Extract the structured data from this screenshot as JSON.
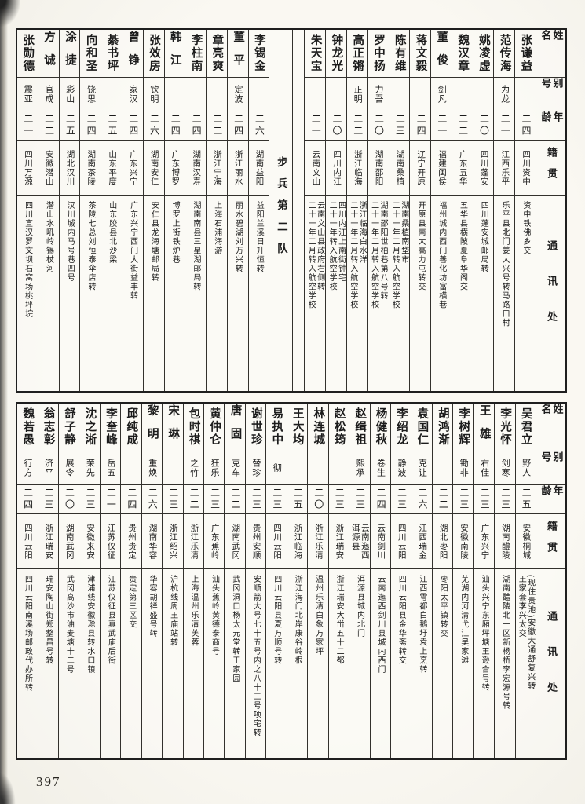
{
  "page": {
    "number": "397"
  },
  "header_labels": {
    "name": "姓名",
    "alias": "别号",
    "age": "年龄",
    "native": "籍贯",
    "address": "通讯处"
  },
  "tables": [
    {
      "id": "top",
      "columns": [
        {
          "type": "header"
        },
        {
          "type": "person",
          "name": "张谦益",
          "alias": "",
          "age": "二四",
          "native": "四川资中",
          "address": "资中铁佛乡交"
        },
        {
          "type": "person",
          "name": "范传海",
          "alias": "为龙",
          "age": "二一",
          "native": "江西乐平",
          "address": "乐平县北门姜大兴号转马路口村"
        },
        {
          "type": "person",
          "name": "姚凌虚",
          "alias": "",
          "age": "二〇",
          "native": "四川蓬安",
          "address": "四川蓬安城邮局转"
        },
        {
          "type": "person",
          "name": "魏汉章",
          "alias": "",
          "age": "二二",
          "native": "广东五华",
          "address": "五华县横陂夏阜华阁交"
        },
        {
          "type": "person",
          "name": "董俊",
          "alias": "剑凡",
          "age": "二一",
          "native": "福建闽侯",
          "address": "福州城内西门善化坊富横巷"
        },
        {
          "type": "person",
          "name": "蒋文毅",
          "alias": "",
          "age": "二四",
          "native": "辽宁开原",
          "address": "开原县南大高力屯转交"
        },
        {
          "type": "person",
          "name": "陈有维",
          "alias": "",
          "age": "二三",
          "native": "湖南桑植",
          "address": "湖南桑植南垈市\n二十一年二月转入航空学校"
        },
        {
          "type": "person",
          "name": "罗中扬",
          "alias": "力吾",
          "age": "二〇",
          "native": "湖南邵阳",
          "address": "湖南邵阳世柏巷第八号转\n二十一年二月转入航空学校"
        },
        {
          "type": "person",
          "name": "高正锵",
          "alias": "正明",
          "age": "二二",
          "native": "浙江临海",
          "address": "浙江临海白水洋\n二十一年二月转入航空学校"
        },
        {
          "type": "person",
          "name": "钟龙光",
          "alias": "",
          "age": "二〇",
          "native": "四川内江",
          "address": "四川内江上南街钟宅\n二十一年转入航空学校"
        },
        {
          "type": "person",
          "name": "朱天宝",
          "alias": "",
          "age": "二一",
          "native": "云南文山",
          "address": "云南文山县政府右侧转\n二十一年二月转入航空学校"
        },
        {
          "type": "spacer"
        },
        {
          "type": "divider",
          "label": "步兵第二队"
        },
        {
          "type": "person",
          "name": "李锡金",
          "alias": "",
          "age": "二六",
          "native": "湖南益阳",
          "address": "益阳兰溪日升恒转"
        },
        {
          "type": "person",
          "name": "董平",
          "alias": "定波",
          "age": "二四",
          "native": "浙江丽水",
          "address": "丽水碧湖刘万兴转"
        },
        {
          "type": "person",
          "name": "章亮爽",
          "alias": "",
          "age": "二二",
          "native": "浙江宁海",
          "address": "上海石浦海游"
        },
        {
          "type": "person",
          "name": "李柱南",
          "alias": "",
          "age": "二四",
          "native": "湖南汉寿",
          "address": "湖南南县三星湖邮局转"
        },
        {
          "type": "person",
          "name": "韩江",
          "alias": "",
          "age": "二四",
          "native": "广东博罗",
          "address": "博罗上街铁炉巷"
        },
        {
          "type": "person",
          "name": "张效房",
          "alias": "钦明",
          "age": "二六",
          "native": "湖南安仁",
          "address": "安仁县龙海塘邮局转"
        },
        {
          "type": "person",
          "name": "曾铮",
          "alias": "家汉",
          "age": "二四",
          "native": "广东兴宁",
          "address": "广东兴宁西门大街益丰转"
        },
        {
          "type": "person",
          "name": "綦书坪",
          "alias": "",
          "age": "二五",
          "native": "山东平度",
          "address": "山东胶县北沙梁"
        },
        {
          "type": "person",
          "name": "向和圣",
          "alias": "饶思",
          "age": "二四",
          "native": "湖南茶陵",
          "address": "茶陵七总刘恒泰伞店转"
        },
        {
          "type": "person",
          "name": "涂捷",
          "alias": "彩山",
          "age": "二五",
          "native": "湖北汉川",
          "address": "汉川城内马号巷四号"
        },
        {
          "type": "person",
          "name": "方诚",
          "alias": "官成",
          "age": "二二",
          "native": "安徽潜山",
          "address": "潜山水吼岭锡杖河"
        },
        {
          "type": "person",
          "name": "张勋德",
          "alias": "震亚",
          "age": "二一",
          "native": "四川万源",
          "address": "四川宣汉罗文坝石窝场桃坪垸"
        }
      ]
    },
    {
      "id": "bottom",
      "columns": [
        {
          "type": "header"
        },
        {
          "type": "person",
          "name": "吴君立",
          "alias": "野人",
          "age": "二五",
          "native": "安徽桐城",
          "address": "(现住贵池)安徽大通舒复兴转\n王家套李兴太交"
        },
        {
          "type": "person",
          "name": "李光怀",
          "alias": "剑寒",
          "age": "二三",
          "native": "湖南醴陵",
          "address": "湖南醴陵北一区新杨桥李宏源号转"
        },
        {
          "type": "person",
          "name": "王雄",
          "alias": "右佳",
          "age": "二三",
          "native": "广东兴宁",
          "address": "汕头兴宁东厢坪塘王逊合号转"
        },
        {
          "type": "person",
          "name": "李树辉",
          "alias": "锄非",
          "age": "二三",
          "native": "安徽南陵",
          "address": "芜湖内河清弋江吴家滩"
        },
        {
          "type": "person",
          "name": "胡鸿渐",
          "alias": "",
          "age": "二二",
          "native": "湖北枣阳",
          "address": "枣阳太平镇转交"
        },
        {
          "type": "person",
          "name": "袁国仁",
          "alias": "克让",
          "age": "二六",
          "native": "江西瑞金",
          "address": "江西雩都白鹅圩袁上烹转"
        },
        {
          "type": "person",
          "name": "李绍龙",
          "alias": "静波",
          "age": "二三",
          "native": "四川云阳",
          "address": "四川云阳县金华斋转交"
        },
        {
          "type": "person",
          "name": "杨健秋",
          "alias": "卷生",
          "age": "二四",
          "native": "云南剑川",
          "address": "云南迤西剑川县城内西门"
        },
        {
          "type": "person",
          "name": "赵缉祖",
          "alias": "熙承",
          "age": "二三",
          "native": "云南迤西\n洱源县",
          "address": "洱源县城内北门"
        },
        {
          "type": "person",
          "name": "赵松筠",
          "alias": "",
          "age": "二三",
          "native": "浙江瑞安",
          "address": "浙江瑞安大峃五十二都"
        },
        {
          "type": "person",
          "name": "林连城",
          "alias": "",
          "age": "二〇",
          "native": "浙江乐清",
          "address": "温州乐清白象万家坪"
        },
        {
          "type": "person",
          "name": "王大均",
          "alias": "",
          "age": "二五",
          "native": "浙江临海",
          "address": "浙江海门北岸康谷岭根"
        },
        {
          "type": "person",
          "name": "易执中",
          "alias": "彻",
          "age": "二三",
          "native": "四川云阳",
          "address": "四川云阳县夏万顺号转"
        },
        {
          "type": "person",
          "name": "谢世珍",
          "alias": "替珍",
          "age": "二三",
          "native": "贵州安顺",
          "address": "安顺箭大号七十五号内之八十三号项宅转"
        },
        {
          "type": "person",
          "name": "唐固",
          "alias": "克车",
          "age": "二二",
          "native": "湖南武冈",
          "address": "武冈洞口杨太元堂转王家园"
        },
        {
          "type": "person",
          "name": "黄仲仑",
          "alias": "狂乐",
          "age": "二三",
          "native": "广东蕉岭",
          "address": "汕头蕉岭黄德泰商号"
        },
        {
          "type": "person",
          "name": "包时祺",
          "alias": "之竹",
          "age": "二二",
          "native": "浙江乐清",
          "address": "上海温州乐清芙蓉"
        },
        {
          "type": "person",
          "name": "宋琳",
          "alias": "",
          "age": "二三",
          "native": "浙江绍兴",
          "address": "沪杭线周王庙站转"
        },
        {
          "type": "person",
          "name": "黎明",
          "alias": "重焕",
          "age": "二六",
          "native": "湖南华容",
          "address": "华容胡祥盛号转"
        },
        {
          "type": "person",
          "name": "邱纯成",
          "alias": "",
          "age": "二四",
          "native": "贵州贵定",
          "address": "贵定第三区交"
        },
        {
          "type": "person",
          "name": "李奎峰",
          "alias": "岳五",
          "age": "二一",
          "native": "江苏仪征",
          "address": "江苏仪征县真武庙后街"
        },
        {
          "type": "person",
          "name": "沈之淅",
          "alias": "荣先",
          "age": "二三",
          "native": "安徽来安",
          "address": "津浦线安徽滁县转水口镇"
        },
        {
          "type": "person",
          "name": "舒子静",
          "alias": "展令",
          "age": "二〇",
          "native": "湖南武冈",
          "address": "武冈高沙市油麦塘十二号"
        },
        {
          "type": "person",
          "name": "翁志彰",
          "alias": "济平",
          "age": "二三",
          "native": "浙江瑞安",
          "address": "瑞安陶山街郑整昌号转"
        },
        {
          "type": "person",
          "name": "魏若愚",
          "alias": "行方",
          "age": "二四",
          "native": "四川云阳",
          "address": "四川云阳南溪场邮政代办所转"
        }
      ]
    }
  ]
}
